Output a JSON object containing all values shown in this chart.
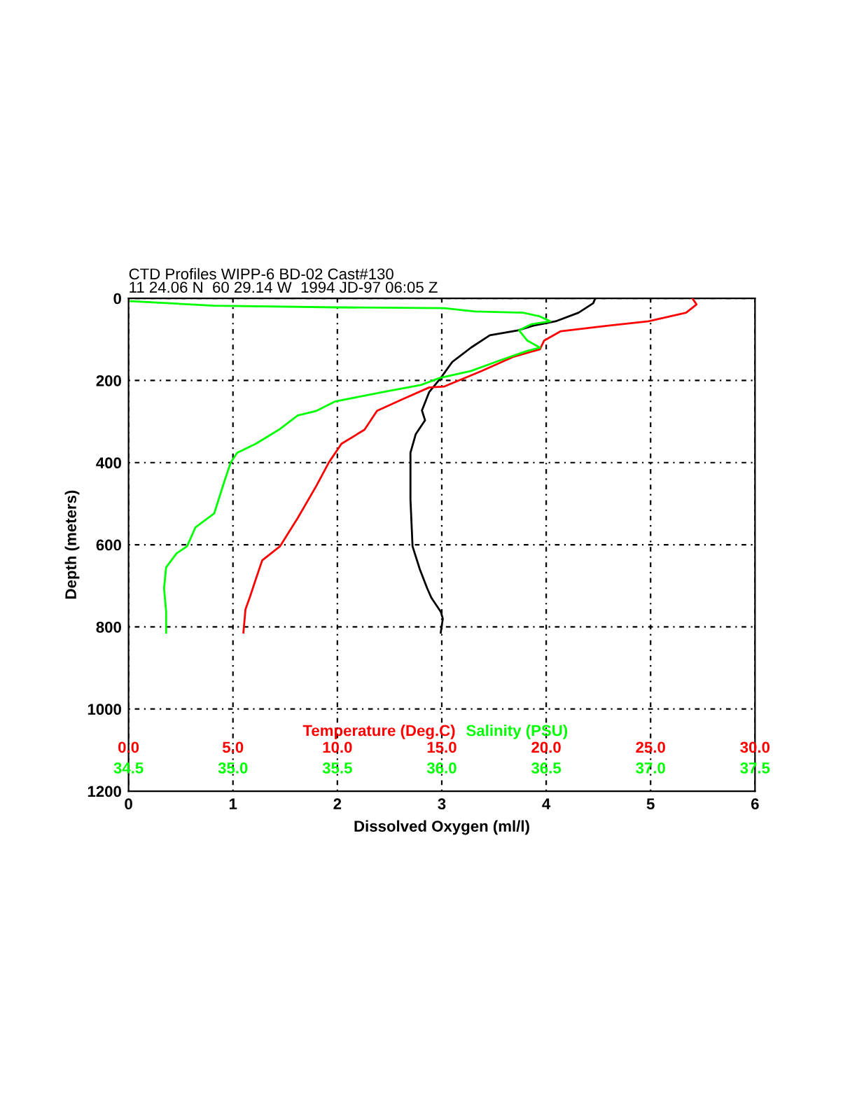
{
  "chart_data": [
    {
      "type": "line",
      "title": "CTD Profiles WIPP-6 BD-02 Cast#130",
      "subtitle": "11 24.06 N  60 29.14 W  1994 JD-97 06:05 Z",
      "xlabel": "Dissolved Oxygen (ml/l)",
      "ylabel": "Depth (meters)",
      "xlim": [
        0,
        6
      ],
      "xticks": [
        0,
        1,
        2,
        3,
        4,
        5,
        6
      ],
      "ylim": [
        1200,
        0
      ],
      "yticks": [
        0,
        200,
        400,
        600,
        800,
        1000,
        1200
      ],
      "grid": true,
      "line_style": "solid",
      "marker": "none",
      "series": [
        {
          "color": "#000000",
          "x": [
            4.47,
            4.45,
            4.31,
            4.09,
            3.87,
            3.73,
            3.46,
            3.28,
            3.1,
            2.99,
            2.88,
            2.81,
            2.84,
            2.75,
            2.7,
            2.7,
            2.72,
            2.79,
            2.86,
            2.9,
            2.99,
            3.01,
            2.99
          ],
          "values": [
            0,
            12,
            35,
            56,
            67,
            78,
            90,
            120,
            155,
            194,
            228,
            273,
            297,
            331,
            376,
            490,
            604,
            660,
            706,
            729,
            763,
            780,
            814
          ]
        }
      ]
    },
    {
      "type": "line",
      "xlabel": "Temperature (Deg.C)",
      "tick_labels": "x",
      "xlim": [
        0,
        30
      ],
      "xticks": [
        {
          "value": 0,
          "label": "0.0"
        },
        {
          "value": 5,
          "label": "5.0"
        },
        {
          "value": 10,
          "label": "10.0"
        },
        {
          "value": 15,
          "label": "15.0"
        },
        {
          "value": 20,
          "label": "20.0"
        },
        {
          "value": 25,
          "label": "25.0"
        },
        {
          "value": 30,
          "label": "30.0"
        }
      ],
      "ylim": [
        1200,
        0
      ],
      "line_style": "solid",
      "marker": "none",
      "series": [
        {
          "color": "#ff0000",
          "x": [
            27.0,
            27.2,
            26.7,
            24.9,
            22.9,
            20.7,
            19.9,
            19.7,
            18.4,
            16.9,
            15.1,
            14.4,
            13.1,
            11.9,
            11.3,
            10.2,
            9.6,
            9.0,
            8.1,
            7.25,
            6.4,
            6.1,
            5.8,
            5.6,
            5.5
          ],
          "values": [
            0,
            15,
            35,
            56,
            67,
            80,
            103,
            124,
            143,
            177,
            215,
            217,
            246,
            274,
            320,
            354,
            399,
            456,
            535,
            604,
            638,
            683,
            729,
            757,
            814
          ]
        }
      ]
    },
    {
      "type": "line",
      "xlabel": "Salinity (PSU)",
      "tick_labels": "x",
      "xlim": [
        34.5,
        37.5
      ],
      "xticks": [
        34.5,
        {
          "value": 35,
          "label": "35.0"
        },
        35.5,
        {
          "value": 36,
          "label": "36.0"
        },
        36.5,
        {
          "value": 37,
          "label": "37.0"
        },
        37.5
      ],
      "ylim": [
        1200,
        0
      ],
      "line_style": "solid",
      "marker": "none",
      "series": [
        {
          "color": "#00ff00",
          "x": [
            34.51,
            34.91,
            35.49,
            36.01,
            36.16,
            36.39,
            36.47,
            36.52,
            36.43,
            36.37,
            36.41,
            36.47,
            36.41,
            36.29,
            36.14,
            35.99,
            35.9,
            35.72,
            35.49,
            35.4,
            35.31,
            35.22,
            35.11,
            35.02,
            34.99,
            34.96,
            34.91,
            34.82,
            34.78,
            34.73,
            34.68,
            34.67,
            34.68,
            34.68
          ],
          "values": [
            7,
            18,
            22,
            24,
            32,
            35,
            44,
            56,
            63,
            78,
            103,
            120,
            128,
            149,
            177,
            194,
            211,
            228,
            251,
            274,
            285,
            320,
            354,
            376,
            399,
            444,
            524,
            558,
            604,
            621,
            655,
            706,
            763,
            814
          ]
        }
      ]
    }
  ]
}
